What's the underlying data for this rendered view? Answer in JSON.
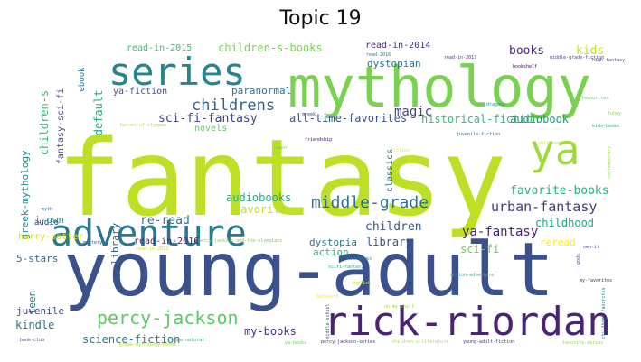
{
  "title": "Topic 19",
  "words": [
    {
      "text": "fantasy",
      "color": "#bddf26"
    },
    {
      "text": "young-adult",
      "color": "#3b518b"
    },
    {
      "text": "mythology",
      "color": "#7ad151"
    },
    {
      "text": "series",
      "color": "#25858e"
    },
    {
      "text": "adventure",
      "color": "#2a788e"
    },
    {
      "text": "rick-riordan",
      "color": "#482475"
    },
    {
      "text": "ya",
      "color": "#a0da39"
    },
    {
      "text": "middle-grade",
      "color": "#2c728e"
    },
    {
      "text": "percy-jackson",
      "color": "#5ec962"
    },
    {
      "text": "childrens",
      "color": "#355f8d"
    },
    {
      "text": "sci-fi-fantasy",
      "color": "#414487"
    },
    {
      "text": "magic",
      "color": "#3e4989"
    },
    {
      "text": "urban-fantasy",
      "color": "#443983"
    },
    {
      "text": "favorite-books",
      "color": "#29af7f"
    },
    {
      "text": "ya-fantasy",
      "color": "#481f70"
    },
    {
      "text": "children",
      "color": "#38598c"
    },
    {
      "text": "childhood",
      "color": "#20a486"
    },
    {
      "text": "audiobooks",
      "color": "#22a884"
    },
    {
      "text": "favorite",
      "color": "#bddf26"
    },
    {
      "text": "re-read",
      "color": "#2c728e"
    },
    {
      "text": "all-time-favorites",
      "color": "#3b528b"
    },
    {
      "text": "historical-fiction",
      "color": "#35b779"
    },
    {
      "text": "audiobook",
      "color": "#1f988b"
    },
    {
      "text": "books",
      "color": "#482878"
    },
    {
      "text": "kids",
      "color": "#c8e020"
    },
    {
      "text": "default",
      "color": "#25ab82"
    },
    {
      "text": "children-s-books",
      "color": "#7ad151"
    },
    {
      "text": "read-in-2015",
      "color": "#3dbc74"
    },
    {
      "text": "read-in-2014",
      "color": "#472d7b"
    },
    {
      "text": "dystopian",
      "color": "#2e6e8e"
    },
    {
      "text": "paranormal",
      "color": "#2d708e"
    },
    {
      "text": "ya-fiction",
      "color": "#3a538b"
    },
    {
      "text": "novels",
      "color": "#5ec962"
    },
    {
      "text": "children-s",
      "color": "#38b977"
    },
    {
      "text": "fantasy-sci-fi",
      "color": "#414487"
    },
    {
      "text": "ebook",
      "color": "#2a788e"
    },
    {
      "text": "greek-mythology",
      "color": "#238a8d"
    },
    {
      "text": "classics",
      "color": "#287c8e"
    },
    {
      "text": "audio",
      "color": "#472d7b"
    },
    {
      "text": "i-own",
      "color": "#1f948c"
    },
    {
      "text": "harry-potter",
      "color": "#d2e21b"
    },
    {
      "text": "my-library",
      "color": "#355f8d"
    },
    {
      "text": "read-in-2016",
      "color": "#482475"
    },
    {
      "text": "dystopia",
      "color": "#2d708e"
    },
    {
      "text": "sci-fi",
      "color": "#6ece58"
    },
    {
      "text": "5-stars",
      "color": "#31688e"
    },
    {
      "text": "action",
      "color": "#2fb47c"
    },
    {
      "text": "library",
      "color": "#3b528b"
    },
    {
      "text": "reread",
      "color": "#fde725"
    },
    {
      "text": "teen",
      "color": "#287c8e"
    },
    {
      "text": "juvenile",
      "color": "#3e4989"
    },
    {
      "text": "kindle",
      "color": "#2c728e"
    },
    {
      "text": "my-books",
      "color": "#46337e"
    },
    {
      "text": "science-fiction",
      "color": "#2a788e"
    },
    {
      "text": "friendship",
      "color": "#440154"
    },
    {
      "text": "mystery",
      "color": "#3b528b"
    },
    {
      "text": "humor",
      "color": "#7ad151"
    },
    {
      "text": "funny",
      "color": "#86d549"
    },
    {
      "text": "dragons",
      "color": "#25858e"
    },
    {
      "text": "high-fantasy",
      "color": "#3f4788"
    },
    {
      "text": "read-in-2017",
      "color": "#46327e"
    },
    {
      "text": "read-2016",
      "color": "#287c8e"
    },
    {
      "text": "juvenile-fiction",
      "color": "#2c728e"
    },
    {
      "text": "greek",
      "color": "#414487"
    },
    {
      "text": "heroes-of-olympus",
      "color": "#addc30"
    },
    {
      "text": "kids-books",
      "color": "#22a884"
    },
    {
      "text": "children-books",
      "color": "#bddf26"
    },
    {
      "text": "contemporary",
      "color": "#90d743"
    },
    {
      "text": "favourites",
      "color": "#5ec962"
    },
    {
      "text": "myth",
      "color": "#31688e"
    },
    {
      "text": "gods",
      "color": "#404688"
    },
    {
      "text": "own-it",
      "color": "#3b528b"
    },
    {
      "text": "childhood-favorites",
      "color": "#2a788e"
    },
    {
      "text": "percy-jackson-and-the-olympians",
      "color": "#7ad151"
    },
    {
      "text": "read-in-2013",
      "color": "#c2df23"
    },
    {
      "text": "scifi-fantasy",
      "color": "#25ab82"
    },
    {
      "text": "action-adventure",
      "color": "#2fb47c"
    },
    {
      "text": "my-favorites",
      "color": "#481a6c"
    },
    {
      "text": "middle-school",
      "color": "#3b528b"
    },
    {
      "text": "on-my-shelf",
      "color": "#a2da37"
    },
    {
      "text": "supernatural",
      "color": "#2fb47c"
    },
    {
      "text": "book-club",
      "color": "#3b528b"
    },
    {
      "text": "ya-books",
      "color": "#6ece58"
    },
    {
      "text": "percy-jackson-series",
      "color": "#481f70"
    },
    {
      "text": "children-s-literature",
      "color": "#addc30"
    },
    {
      "text": "young-adult-fiction",
      "color": "#46337e"
    },
    {
      "text": "favorite-series",
      "color": "#8fd744"
    },
    {
      "text": "bookshelf",
      "color": "#440154"
    },
    {
      "text": "english",
      "color": "#c8e020"
    },
    {
      "text": "backyard",
      "color": "#fde725"
    },
    {
      "text": "kid-books",
      "color": "#25848e"
    },
    {
      "text": "middle-grade-fiction",
      "color": "#3e4989"
    },
    {
      "text": "greek-mythology-books",
      "color": "#a2da37"
    },
    {
      "text": "fiction",
      "color": "#fde725"
    }
  ]
}
